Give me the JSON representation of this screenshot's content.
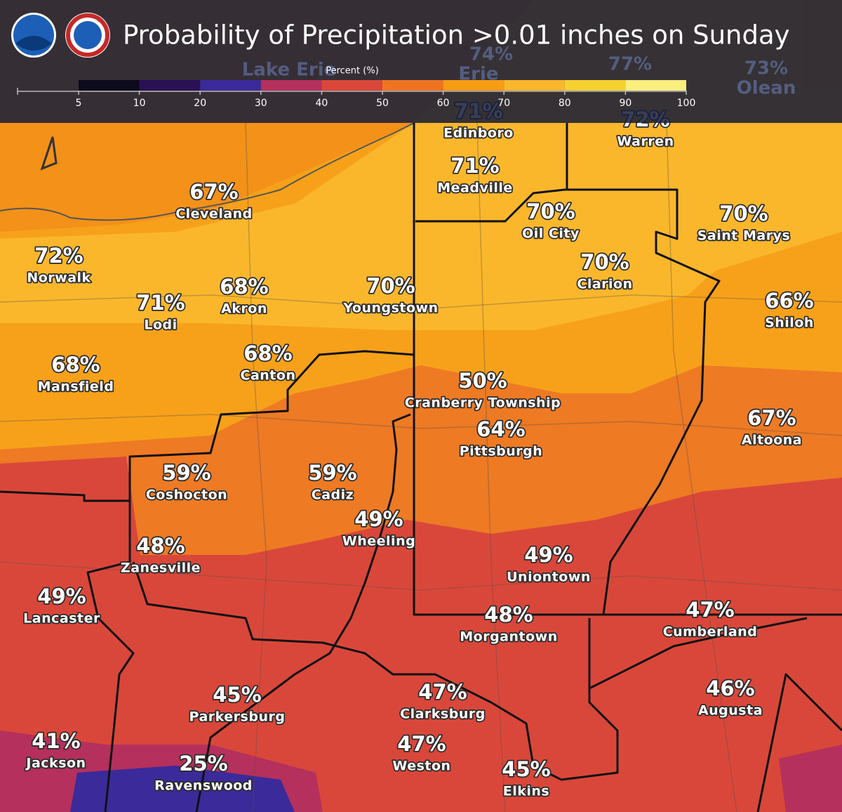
{
  "header": {
    "title": "Probability of Precipitation >0.01 inches on Sunday"
  },
  "legend": {
    "title": "Percent (%)",
    "ticks": [
      5,
      10,
      20,
      30,
      40,
      50,
      60,
      70,
      80,
      90,
      100
    ],
    "colors": [
      "#0d0a1e",
      "#2a1154",
      "#3b2a9a",
      "#b5305c",
      "#d9473a",
      "#ee7422",
      "#f79c13",
      "#fab72c",
      "#f6d231",
      "#fbef7f"
    ]
  },
  "background_labels": [
    "74%",
    "Erie",
    "77%",
    "73%",
    "Olean",
    "Lake Erie"
  ],
  "cities": [
    {
      "name": "Edinboro",
      "value": "71%"
    },
    {
      "name": "Warren",
      "value": "72%"
    },
    {
      "name": "Meadville",
      "value": "71%"
    },
    {
      "name": "Cleveland",
      "value": "67%"
    },
    {
      "name": "Oil City",
      "value": "70%"
    },
    {
      "name": "Saint Marys",
      "value": "70%"
    },
    {
      "name": "Norwalk",
      "value": "72%"
    },
    {
      "name": "Clarion",
      "value": "70%"
    },
    {
      "name": "Akron",
      "value": "68%"
    },
    {
      "name": "Youngstown",
      "value": "70%"
    },
    {
      "name": "Lodi",
      "value": "71%"
    },
    {
      "name": "Shiloh",
      "value": "66%"
    },
    {
      "name": "Mansfield",
      "value": "68%"
    },
    {
      "name": "Canton",
      "value": "68%"
    },
    {
      "name": "Cranberry Township",
      "value": "50%"
    },
    {
      "name": "Pittsburgh",
      "value": "64%"
    },
    {
      "name": "Altoona",
      "value": "67%"
    },
    {
      "name": "Coshocton",
      "value": "59%"
    },
    {
      "name": "Cadiz",
      "value": "59%"
    },
    {
      "name": "Wheeling",
      "value": "49%"
    },
    {
      "name": "Zanesville",
      "value": "48%"
    },
    {
      "name": "Uniontown",
      "value": "49%"
    },
    {
      "name": "Lancaster",
      "value": "49%"
    },
    {
      "name": "Morgantown",
      "value": "48%"
    },
    {
      "name": "Cumberland",
      "value": "47%"
    },
    {
      "name": "Augusta",
      "value": "46%"
    },
    {
      "name": "Parkersburg",
      "value": "45%"
    },
    {
      "name": "Clarksburg",
      "value": "47%"
    },
    {
      "name": "Jackson",
      "value": "41%"
    },
    {
      "name": "Ravenswood",
      "value": "25%"
    },
    {
      "name": "Weston",
      "value": "47%"
    },
    {
      "name": "Elkins",
      "value": "45%"
    }
  ]
}
